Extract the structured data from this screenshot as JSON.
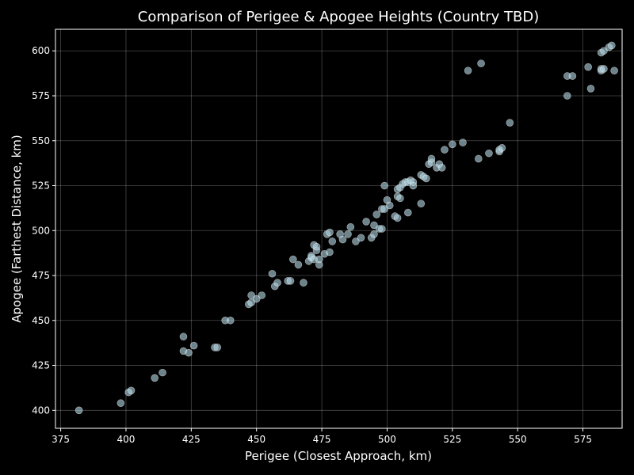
{
  "chart_data": {
    "type": "scatter",
    "title": "Comparison of Perigee & Apogee Heights (Country TBD)",
    "xlabel": "Perigee (Closest Approach, km)",
    "ylabel": "Apogee (Farthest Distance, km)",
    "xlim": [
      373,
      590
    ],
    "ylim": [
      390,
      612
    ],
    "xticks": [
      375,
      400,
      425,
      450,
      475,
      500,
      525,
      550,
      575
    ],
    "yticks": [
      400,
      425,
      450,
      475,
      500,
      525,
      550,
      575,
      600
    ],
    "grid": true,
    "point_color": "#b0d4e0",
    "background": "#000000",
    "points": [
      [
        382,
        400
      ],
      [
        398,
        404
      ],
      [
        401,
        410
      ],
      [
        402,
        411
      ],
      [
        411,
        418
      ],
      [
        414,
        421
      ],
      [
        422,
        441
      ],
      [
        422,
        433
      ],
      [
        424,
        432
      ],
      [
        426,
        436
      ],
      [
        434,
        435
      ],
      [
        435,
        435
      ],
      [
        438,
        450
      ],
      [
        440,
        450
      ],
      [
        447,
        459
      ],
      [
        448,
        460
      ],
      [
        448,
        464
      ],
      [
        450,
        462
      ],
      [
        452,
        464
      ],
      [
        456,
        476
      ],
      [
        457,
        469
      ],
      [
        458,
        471
      ],
      [
        462,
        472
      ],
      [
        463,
        472
      ],
      [
        464,
        484
      ],
      [
        466,
        481
      ],
      [
        468,
        471
      ],
      [
        470,
        483
      ],
      [
        471,
        485
      ],
      [
        471,
        486
      ],
      [
        472,
        492
      ],
      [
        472,
        484
      ],
      [
        473,
        489
      ],
      [
        473,
        491
      ],
      [
        474,
        481
      ],
      [
        474,
        484
      ],
      [
        476,
        487
      ],
      [
        477,
        498
      ],
      [
        478,
        488
      ],
      [
        478,
        499
      ],
      [
        479,
        494
      ],
      [
        482,
        498
      ],
      [
        483,
        495
      ],
      [
        485,
        498
      ],
      [
        486,
        502
      ],
      [
        488,
        494
      ],
      [
        490,
        496
      ],
      [
        492,
        505
      ],
      [
        494,
        496
      ],
      [
        495,
        498
      ],
      [
        495,
        503
      ],
      [
        496,
        509
      ],
      [
        497,
        501
      ],
      [
        498,
        512
      ],
      [
        498,
        501
      ],
      [
        499,
        512
      ],
      [
        499,
        525
      ],
      [
        500,
        517
      ],
      [
        501,
        514
      ],
      [
        503,
        508
      ],
      [
        504,
        507
      ],
      [
        504,
        523
      ],
      [
        504,
        519
      ],
      [
        505,
        518
      ],
      [
        505,
        524
      ],
      [
        506,
        526
      ],
      [
        507,
        527
      ],
      [
        508,
        510
      ],
      [
        508,
        527
      ],
      [
        509,
        528
      ],
      [
        510,
        527
      ],
      [
        510,
        525
      ],
      [
        513,
        515
      ],
      [
        513,
        531
      ],
      [
        514,
        530
      ],
      [
        515,
        529
      ],
      [
        516,
        537
      ],
      [
        517,
        538
      ],
      [
        517,
        540
      ],
      [
        519,
        535
      ],
      [
        520,
        537
      ],
      [
        521,
        535
      ],
      [
        522,
        545
      ],
      [
        525,
        548
      ],
      [
        529,
        549
      ],
      [
        531,
        589
      ],
      [
        535,
        540
      ],
      [
        536,
        593
      ],
      [
        539,
        543
      ],
      [
        543,
        544
      ],
      [
        543,
        545
      ],
      [
        544,
        546
      ],
      [
        547,
        560
      ],
      [
        569,
        575
      ],
      [
        569,
        586
      ],
      [
        571,
        586
      ],
      [
        577,
        591
      ],
      [
        578,
        579
      ],
      [
        582,
        589
      ],
      [
        582,
        590
      ],
      [
        583,
        590
      ],
      [
        582,
        599
      ],
      [
        583,
        600
      ],
      [
        585,
        602
      ],
      [
        586,
        603
      ],
      [
        587,
        589
      ]
    ]
  }
}
